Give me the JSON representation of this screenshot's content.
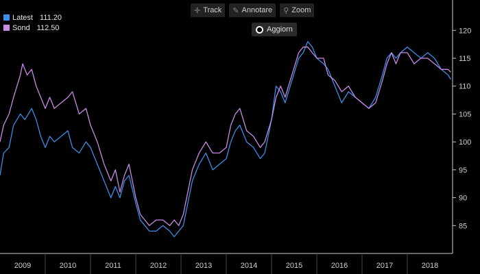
{
  "toolbar": {
    "track_label": "Track",
    "annotate_label": "Annotare",
    "zoom_label": "Zoom",
    "refresh_label": "Aggiorn"
  },
  "colors": {
    "latest": "#3c8ee8",
    "sond": "#c98ae8",
    "background": "#000000",
    "axis": "#cfcfcf",
    "grid": "#4a4a4a"
  },
  "chart_data": {
    "type": "line",
    "y_axis": {
      "side": "right",
      "ticks": [
        85,
        90,
        95,
        100,
        105,
        110,
        115,
        120
      ],
      "ylim": [
        80,
        122
      ]
    },
    "x_axis": {
      "tick_labels": [
        "2009",
        "2010",
        "2011",
        "2012",
        "2013",
        "2014",
        "2015",
        "2016",
        "2017",
        "2018"
      ],
      "xlim": [
        2009.0,
        2019.0
      ]
    },
    "grid": false,
    "legend_position": "top-left",
    "series": [
      {
        "name": "Latest",
        "last_value_label": "111.20",
        "values": [
          [
            2009.0,
            94
          ],
          [
            2009.08,
            98
          ],
          [
            2009.2,
            99
          ],
          [
            2009.3,
            103
          ],
          [
            2009.45,
            105
          ],
          [
            2009.55,
            104
          ],
          [
            2009.7,
            106
          ],
          [
            2009.8,
            104
          ],
          [
            2009.9,
            101
          ],
          [
            2010.0,
            99
          ],
          [
            2010.1,
            101
          ],
          [
            2010.2,
            100
          ],
          [
            2010.35,
            101
          ],
          [
            2010.5,
            102
          ],
          [
            2010.6,
            99
          ],
          [
            2010.75,
            98
          ],
          [
            2010.9,
            100
          ],
          [
            2011.0,
            99
          ],
          [
            2011.15,
            96
          ],
          [
            2011.3,
            93
          ],
          [
            2011.45,
            90
          ],
          [
            2011.55,
            92
          ],
          [
            2011.65,
            90
          ],
          [
            2011.75,
            93
          ],
          [
            2011.85,
            94
          ],
          [
            2012.0,
            89
          ],
          [
            2012.1,
            86
          ],
          [
            2012.2,
            85
          ],
          [
            2012.3,
            84
          ],
          [
            2012.45,
            84
          ],
          [
            2012.6,
            85
          ],
          [
            2012.75,
            84
          ],
          [
            2012.85,
            83
          ],
          [
            2012.95,
            84
          ],
          [
            2013.05,
            85
          ],
          [
            2013.15,
            89
          ],
          [
            2013.25,
            93
          ],
          [
            2013.4,
            96
          ],
          [
            2013.55,
            98
          ],
          [
            2013.7,
            95
          ],
          [
            2013.85,
            96
          ],
          [
            2014.0,
            97
          ],
          [
            2014.1,
            100
          ],
          [
            2014.2,
            102
          ],
          [
            2014.3,
            103
          ],
          [
            2014.45,
            100
          ],
          [
            2014.6,
            99
          ],
          [
            2014.75,
            97
          ],
          [
            2014.85,
            98
          ],
          [
            2015.0,
            104
          ],
          [
            2015.1,
            110
          ],
          [
            2015.2,
            109
          ],
          [
            2015.3,
            107
          ],
          [
            2015.45,
            111
          ],
          [
            2015.6,
            115
          ],
          [
            2015.7,
            116
          ],
          [
            2015.8,
            118
          ],
          [
            2015.9,
            117
          ],
          [
            2016.0,
            115
          ],
          [
            2016.15,
            114
          ],
          [
            2016.25,
            113
          ],
          [
            2016.4,
            110
          ],
          [
            2016.55,
            107
          ],
          [
            2016.7,
            109
          ],
          [
            2016.85,
            108
          ],
          [
            2017.0,
            107
          ],
          [
            2017.15,
            106
          ],
          [
            2017.3,
            108
          ],
          [
            2017.45,
            112
          ],
          [
            2017.55,
            115
          ],
          [
            2017.65,
            116
          ],
          [
            2017.75,
            115
          ],
          [
            2017.85,
            116
          ],
          [
            2018.0,
            117
          ],
          [
            2018.15,
            116
          ],
          [
            2018.3,
            115
          ],
          [
            2018.45,
            116
          ],
          [
            2018.6,
            115
          ],
          [
            2018.75,
            113
          ],
          [
            2018.9,
            112
          ],
          [
            2018.96,
            111.2
          ]
        ]
      },
      {
        "name": "Sond",
        "last_value_label": "112.50",
        "values": [
          [
            2009.0,
            100
          ],
          [
            2009.08,
            103
          ],
          [
            2009.2,
            105
          ],
          [
            2009.3,
            108
          ],
          [
            2009.45,
            112
          ],
          [
            2009.5,
            114
          ],
          [
            2009.6,
            112
          ],
          [
            2009.7,
            113
          ],
          [
            2009.8,
            110
          ],
          [
            2009.9,
            108
          ],
          [
            2010.0,
            106
          ],
          [
            2010.1,
            108
          ],
          [
            2010.2,
            106
          ],
          [
            2010.35,
            107
          ],
          [
            2010.5,
            108
          ],
          [
            2010.6,
            109
          ],
          [
            2010.75,
            105
          ],
          [
            2010.9,
            106
          ],
          [
            2011.0,
            103
          ],
          [
            2011.15,
            100
          ],
          [
            2011.3,
            96
          ],
          [
            2011.45,
            93
          ],
          [
            2011.55,
            95
          ],
          [
            2011.65,
            91
          ],
          [
            2011.75,
            94
          ],
          [
            2011.85,
            96
          ],
          [
            2012.0,
            90
          ],
          [
            2012.1,
            87
          ],
          [
            2012.2,
            86
          ],
          [
            2012.3,
            85
          ],
          [
            2012.45,
            86
          ],
          [
            2012.6,
            86
          ],
          [
            2012.75,
            85
          ],
          [
            2012.85,
            86
          ],
          [
            2012.95,
            85
          ],
          [
            2013.05,
            87
          ],
          [
            2013.15,
            91
          ],
          [
            2013.25,
            95
          ],
          [
            2013.4,
            98
          ],
          [
            2013.55,
            100
          ],
          [
            2013.7,
            98
          ],
          [
            2013.85,
            98
          ],
          [
            2014.0,
            99
          ],
          [
            2014.1,
            103
          ],
          [
            2014.2,
            105
          ],
          [
            2014.3,
            106
          ],
          [
            2014.45,
            102
          ],
          [
            2014.6,
            101
          ],
          [
            2014.75,
            99
          ],
          [
            2014.85,
            100
          ],
          [
            2015.0,
            104
          ],
          [
            2015.1,
            108
          ],
          [
            2015.2,
            110
          ],
          [
            2015.3,
            108
          ],
          [
            2015.45,
            112
          ],
          [
            2015.6,
            116
          ],
          [
            2015.7,
            117
          ],
          [
            2015.8,
            117
          ],
          [
            2015.9,
            116
          ],
          [
            2016.0,
            115
          ],
          [
            2016.15,
            115
          ],
          [
            2016.25,
            112
          ],
          [
            2016.4,
            111
          ],
          [
            2016.55,
            109
          ],
          [
            2016.7,
            110
          ],
          [
            2016.85,
            108
          ],
          [
            2017.0,
            107
          ],
          [
            2017.15,
            106
          ],
          [
            2017.3,
            107
          ],
          [
            2017.45,
            111
          ],
          [
            2017.55,
            114
          ],
          [
            2017.65,
            116
          ],
          [
            2017.75,
            114
          ],
          [
            2017.85,
            116
          ],
          [
            2018.0,
            116
          ],
          [
            2018.15,
            114
          ],
          [
            2018.3,
            115
          ],
          [
            2018.45,
            115
          ],
          [
            2018.6,
            114
          ],
          [
            2018.75,
            113
          ],
          [
            2018.9,
            113
          ],
          [
            2018.96,
            112.5
          ]
        ]
      }
    ]
  }
}
